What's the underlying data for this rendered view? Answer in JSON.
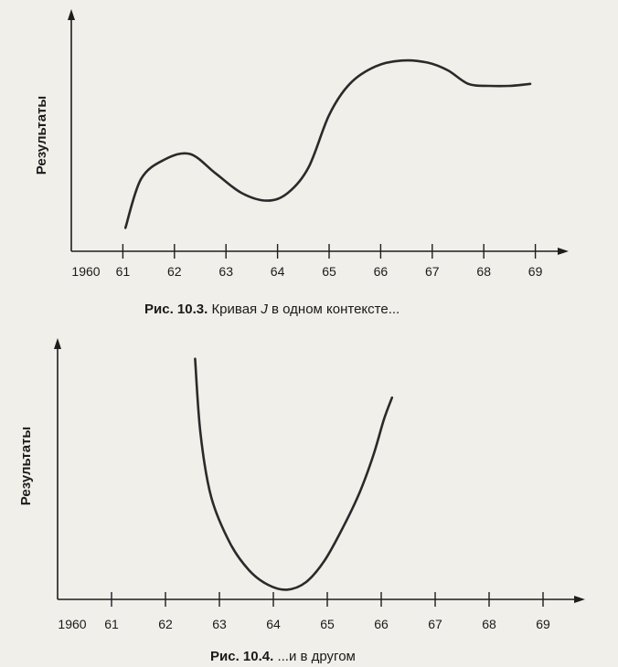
{
  "figures": [
    {
      "caption": {
        "label": "Рис. 10.3.",
        "pre": "Кривая",
        "italic": "J",
        "post": "в одном контексте..."
      }
    },
    {
      "caption": {
        "label": "Рис. 10.4.",
        "pre": "...и в другом",
        "italic": "",
        "post": ""
      }
    }
  ],
  "chart_data": [
    {
      "type": "line",
      "title": "",
      "xlabel": "",
      "ylabel": "Результаты",
      "x_ticks": [
        "1960",
        "61",
        "62",
        "63",
        "64",
        "65",
        "66",
        "67",
        "68",
        "69"
      ],
      "xlim": [
        1960,
        1969
      ],
      "y_numeric_ticks": false,
      "ylim": [
        0,
        10
      ],
      "grid": false,
      "series": [
        {
          "color": "#2a2a2a",
          "x": [
            1961.05,
            1961.35,
            1961.8,
            1962.3,
            1962.8,
            1963.3,
            1963.8,
            1964.2,
            1964.6,
            1965.0,
            1965.4,
            1965.9,
            1966.4,
            1966.9,
            1967.3,
            1967.7,
            1968.1,
            1968.5,
            1968.9
          ],
          "y": [
            1.2,
            3.7,
            4.7,
            5.0,
            4.0,
            3.0,
            2.6,
            3.0,
            4.3,
            7.0,
            8.6,
            9.5,
            9.8,
            9.7,
            9.3,
            8.6,
            8.5,
            8.5,
            8.6
          ]
        }
      ]
    },
    {
      "type": "line",
      "title": "",
      "xlabel": "",
      "ylabel": "Результаты",
      "x_ticks": [
        "1960",
        "61",
        "62",
        "63",
        "64",
        "65",
        "66",
        "67",
        "68",
        "69"
      ],
      "xlim": [
        1960,
        1969
      ],
      "y_numeric_ticks": false,
      "ylim": [
        0,
        10
      ],
      "grid": false,
      "series": [
        {
          "color": "#2a2a2a",
          "x": [
            1962.55,
            1962.65,
            1962.85,
            1963.2,
            1963.55,
            1963.9,
            1964.25,
            1964.6,
            1964.95,
            1965.3,
            1965.6,
            1965.85,
            1966.05,
            1966.2
          ],
          "y": [
            9.9,
            6.8,
            4.2,
            2.3,
            1.2,
            0.6,
            0.4,
            0.7,
            1.6,
            3.0,
            4.4,
            5.9,
            7.4,
            8.3
          ]
        }
      ]
    }
  ]
}
